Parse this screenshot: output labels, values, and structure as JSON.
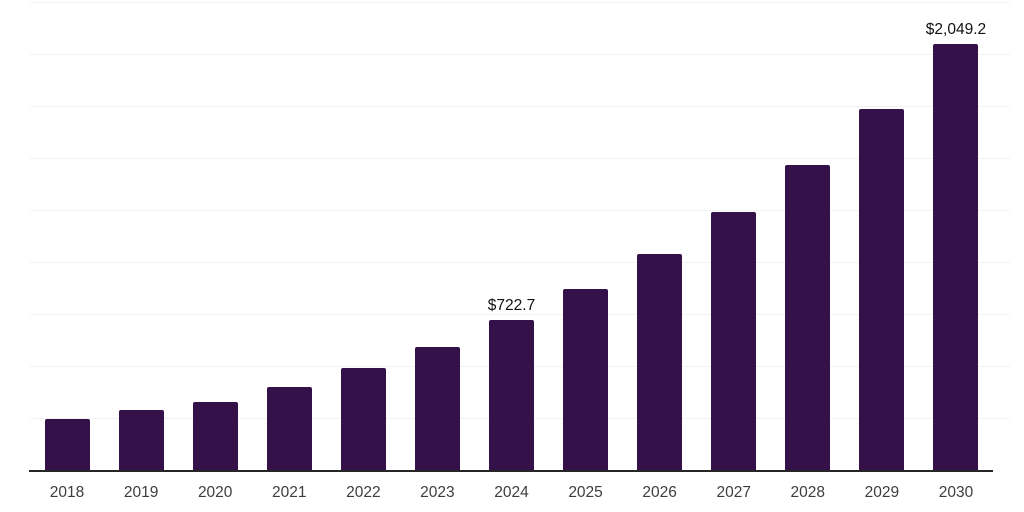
{
  "colors": {
    "bar": "#341249",
    "grid": "#f2f2f2",
    "axis": "#262626",
    "tick_text": "#3d3d3d",
    "label_text": "#111111",
    "background": "#ffffff"
  },
  "chart_data": {
    "type": "bar",
    "title": "",
    "xlabel": "",
    "ylabel": "",
    "categories": [
      "2018",
      "2019",
      "2020",
      "2021",
      "2022",
      "2023",
      "2024",
      "2025",
      "2026",
      "2027",
      "2028",
      "2029",
      "2030"
    ],
    "values": [
      245,
      290,
      325,
      400,
      490,
      590,
      722.7,
      870,
      1040,
      1240,
      1465,
      1735,
      2049.2
    ],
    "data_labels": [
      {
        "index": 6,
        "text": "$722.7"
      },
      {
        "index": 12,
        "text": "$2,049.2"
      }
    ],
    "ylim": [
      0,
      2250
    ],
    "grid_step": 250,
    "grid": "horizontal-only",
    "legend": "none",
    "y_axis_labels_visible": false
  }
}
